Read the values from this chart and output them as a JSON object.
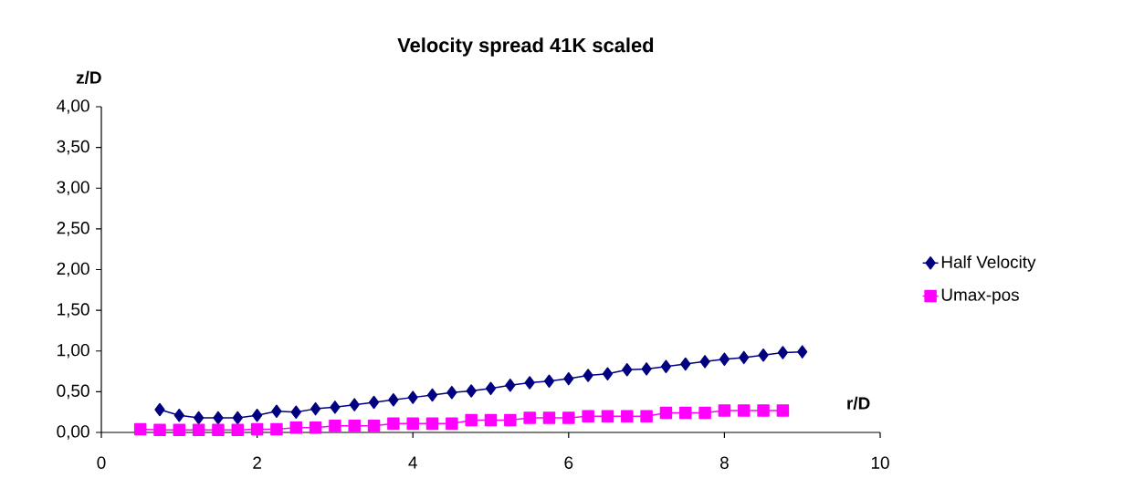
{
  "chart_data": {
    "type": "line",
    "title": "Velocity spread 41K scaled",
    "xlabel": "r/D",
    "ylabel": "z/D",
    "series": [
      {
        "name": "Half Velocity",
        "color": "#000080",
        "marker": "diamond",
        "x": [
          0.75,
          1.0,
          1.25,
          1.5,
          1.75,
          2.0,
          2.25,
          2.5,
          2.75,
          3.0,
          3.25,
          3.5,
          3.75,
          4.0,
          4.25,
          4.5,
          4.75,
          5.0,
          5.25,
          5.5,
          5.75,
          6.0,
          6.25,
          6.5,
          6.75,
          7.0,
          7.25,
          7.5,
          7.75,
          8.0,
          8.25,
          8.5,
          8.75,
          9.0
        ],
        "values": [
          0.28,
          0.21,
          0.18,
          0.18,
          0.18,
          0.21,
          0.26,
          0.25,
          0.29,
          0.31,
          0.34,
          0.37,
          0.4,
          0.43,
          0.46,
          0.49,
          0.51,
          0.54,
          0.58,
          0.61,
          0.63,
          0.66,
          0.7,
          0.72,
          0.77,
          0.78,
          0.81,
          0.84,
          0.87,
          0.9,
          0.92,
          0.95,
          0.98,
          0.99
        ]
      },
      {
        "name": "Umax-pos",
        "color": "#ff00ff",
        "marker": "square",
        "x": [
          0.5,
          0.75,
          1.0,
          1.25,
          1.5,
          1.75,
          2.0,
          2.25,
          2.5,
          2.75,
          3.0,
          3.25,
          3.5,
          3.75,
          4.0,
          4.25,
          4.5,
          4.75,
          5.0,
          5.25,
          5.5,
          5.75,
          6.0,
          6.25,
          6.5,
          6.75,
          7.0,
          7.25,
          7.5,
          7.75,
          8.0,
          8.25,
          8.5,
          8.75
        ],
        "values": [
          0.04,
          0.03,
          0.03,
          0.03,
          0.03,
          0.03,
          0.04,
          0.04,
          0.06,
          0.06,
          0.08,
          0.08,
          0.08,
          0.11,
          0.11,
          0.11,
          0.11,
          0.15,
          0.15,
          0.15,
          0.18,
          0.18,
          0.18,
          0.2,
          0.2,
          0.2,
          0.2,
          0.24,
          0.24,
          0.24,
          0.27,
          0.27,
          0.27,
          0.27
        ]
      }
    ],
    "xlim": [
      0,
      10
    ],
    "xticks": [
      0,
      2,
      4,
      6,
      8,
      10
    ],
    "ylim": [
      0,
      4
    ],
    "yticks": [
      {
        "value": 0,
        "label": "0,00"
      },
      {
        "value": 0.5,
        "label": "0,50"
      },
      {
        "value": 1,
        "label": "1,00"
      },
      {
        "value": 1.5,
        "label": "1,50"
      },
      {
        "value": 2,
        "label": "2,00"
      },
      {
        "value": 2.5,
        "label": "2,50"
      },
      {
        "value": 3,
        "label": "3,00"
      },
      {
        "value": 3.5,
        "label": "3,50"
      },
      {
        "value": 4,
        "label": "4,00"
      }
    ],
    "legend": "right",
    "line_style": "solid"
  }
}
